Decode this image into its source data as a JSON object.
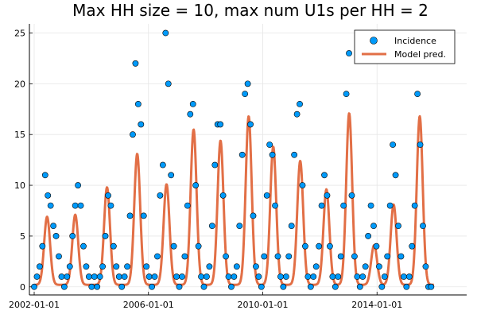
{
  "chart_data": {
    "type": "scatter",
    "title": "Max HH size = 10, max num U1s per HH = 2",
    "xlabel": "",
    "ylabel": "",
    "x_type": "date",
    "xlim": [
      "2001-11-01",
      "2017-02-20"
    ],
    "ylim": [
      -0.8,
      25.9
    ],
    "x_ticks": [
      "2002-01-01",
      "2006-01-01",
      "2010-01-01",
      "2014-01-01"
    ],
    "x_tick_labels": [
      "2002-01-01",
      "2006-01-01",
      "2010-01-01",
      "2014-01-01"
    ],
    "y_ticks": [
      0,
      5,
      10,
      15,
      20,
      25
    ],
    "y_tick_labels": [
      "0",
      "5",
      "10",
      "15",
      "20",
      "25"
    ],
    "grid": true,
    "legend_position": "top-right",
    "series": [
      {
        "name": "Incidence",
        "kind": "scatter",
        "color": "#009AFA",
        "points": [
          [
            "2002-01-01",
            0
          ],
          [
            "2002-02-05",
            1
          ],
          [
            "2002-03-12",
            2
          ],
          [
            "2002-04-16",
            4
          ],
          [
            "2002-05-21",
            11
          ],
          [
            "2002-06-25",
            9
          ],
          [
            "2002-07-30",
            8
          ],
          [
            "2002-09-03",
            6
          ],
          [
            "2002-10-08",
            5
          ],
          [
            "2002-11-12",
            3
          ],
          [
            "2002-12-17",
            1
          ],
          [
            "2003-01-21",
            0
          ],
          [
            "2003-02-25",
            1
          ],
          [
            "2003-04-01",
            2
          ],
          [
            "2003-05-06",
            5
          ],
          [
            "2003-06-10",
            8
          ],
          [
            "2003-07-15",
            10
          ],
          [
            "2003-08-19",
            8
          ],
          [
            "2003-09-23",
            4
          ],
          [
            "2003-10-28",
            2
          ],
          [
            "2003-12-02",
            1
          ],
          [
            "2004-01-06",
            0
          ],
          [
            "2004-02-10",
            1
          ],
          [
            "2004-03-16",
            0
          ],
          [
            "2004-04-20",
            1
          ],
          [
            "2004-05-25",
            2
          ],
          [
            "2004-06-29",
            5
          ],
          [
            "2004-08-03",
            9
          ],
          [
            "2004-09-07",
            8
          ],
          [
            "2004-10-12",
            4
          ],
          [
            "2004-11-16",
            2
          ],
          [
            "2004-12-21",
            1
          ],
          [
            "2005-01-25",
            0
          ],
          [
            "2005-03-01",
            1
          ],
          [
            "2005-04-05",
            2
          ],
          [
            "2005-05-10",
            7
          ],
          [
            "2005-06-14",
            15
          ],
          [
            "2005-07-19",
            22
          ],
          [
            "2005-08-23",
            18
          ],
          [
            "2005-09-27",
            16
          ],
          [
            "2005-11-01",
            7
          ],
          [
            "2005-12-06",
            2
          ],
          [
            "2006-01-10",
            1
          ],
          [
            "2006-02-14",
            0
          ],
          [
            "2006-03-21",
            1
          ],
          [
            "2006-04-25",
            3
          ],
          [
            "2006-05-30",
            9
          ],
          [
            "2006-07-04",
            12
          ],
          [
            "2006-08-08",
            25
          ],
          [
            "2006-09-12",
            20
          ],
          [
            "2006-10-17",
            11
          ],
          [
            "2006-11-21",
            4
          ],
          [
            "2006-12-26",
            1
          ],
          [
            "2007-01-30",
            0
          ],
          [
            "2007-03-06",
            1
          ],
          [
            "2007-04-10",
            3
          ],
          [
            "2007-05-15",
            8
          ],
          [
            "2007-06-19",
            17
          ],
          [
            "2007-07-24",
            18
          ],
          [
            "2007-08-28",
            10
          ],
          [
            "2007-10-02",
            4
          ],
          [
            "2007-11-06",
            1
          ],
          [
            "2007-12-11",
            0
          ],
          [
            "2008-01-15",
            1
          ],
          [
            "2008-02-19",
            2
          ],
          [
            "2008-03-25",
            6
          ],
          [
            "2008-04-29",
            12
          ],
          [
            "2008-06-03",
            16
          ],
          [
            "2008-07-08",
            16
          ],
          [
            "2008-08-12",
            9
          ],
          [
            "2008-09-16",
            3
          ],
          [
            "2008-10-21",
            1
          ],
          [
            "2008-11-25",
            0
          ],
          [
            "2008-12-30",
            1
          ],
          [
            "2009-02-03",
            2
          ],
          [
            "2009-03-10",
            6
          ],
          [
            "2009-04-14",
            13
          ],
          [
            "2009-05-19",
            19
          ],
          [
            "2009-06-23",
            20
          ],
          [
            "2009-07-28",
            16
          ],
          [
            "2009-09-01",
            7
          ],
          [
            "2009-10-06",
            2
          ],
          [
            "2009-11-10",
            1
          ],
          [
            "2009-12-15",
            0
          ],
          [
            "2010-01-19",
            3
          ],
          [
            "2010-02-23",
            9
          ],
          [
            "2010-03-30",
            14
          ],
          [
            "2010-05-04",
            13
          ],
          [
            "2010-06-08",
            8
          ],
          [
            "2010-07-13",
            3
          ],
          [
            "2010-08-17",
            1
          ],
          [
            "2010-09-21",
            0
          ],
          [
            "2010-10-26",
            1
          ],
          [
            "2010-11-30",
            3
          ],
          [
            "2011-01-04",
            6
          ],
          [
            "2011-02-08",
            13
          ],
          [
            "2011-03-15",
            17
          ],
          [
            "2011-04-19",
            18
          ],
          [
            "2011-05-24",
            10
          ],
          [
            "2011-06-28",
            4
          ],
          [
            "2011-08-02",
            1
          ],
          [
            "2011-09-06",
            0
          ],
          [
            "2011-10-11",
            1
          ],
          [
            "2011-11-15",
            2
          ],
          [
            "2011-12-20",
            4
          ],
          [
            "2012-01-24",
            8
          ],
          [
            "2012-02-28",
            11
          ],
          [
            "2012-04-03",
            9
          ],
          [
            "2012-05-08",
            4
          ],
          [
            "2012-06-12",
            1
          ],
          [
            "2012-07-17",
            0
          ],
          [
            "2012-08-21",
            1
          ],
          [
            "2012-09-25",
            3
          ],
          [
            "2012-10-30",
            8
          ],
          [
            "2012-12-04",
            19
          ],
          [
            "2013-01-08",
            23
          ],
          [
            "2013-02-12",
            9
          ],
          [
            "2013-03-19",
            3
          ],
          [
            "2013-04-23",
            1
          ],
          [
            "2013-05-28",
            0
          ],
          [
            "2013-07-02",
            1
          ],
          [
            "2013-08-06",
            2
          ],
          [
            "2013-09-10",
            5
          ],
          [
            "2013-10-15",
            8
          ],
          [
            "2013-11-19",
            6
          ],
          [
            "2013-12-24",
            4
          ],
          [
            "2014-01-28",
            2
          ],
          [
            "2014-03-04",
            0
          ],
          [
            "2014-04-08",
            1
          ],
          [
            "2014-05-13",
            3
          ],
          [
            "2014-06-17",
            8
          ],
          [
            "2014-07-22",
            14
          ],
          [
            "2014-08-26",
            11
          ],
          [
            "2014-09-30",
            6
          ],
          [
            "2014-11-04",
            3
          ],
          [
            "2014-12-09",
            1
          ],
          [
            "2015-01-13",
            0
          ],
          [
            "2015-02-17",
            1
          ],
          [
            "2015-03-24",
            4
          ],
          [
            "2015-04-28",
            8
          ],
          [
            "2015-06-02",
            19
          ],
          [
            "2015-07-07",
            14
          ],
          [
            "2015-08-11",
            6
          ],
          [
            "2015-09-15",
            2
          ],
          [
            "2015-10-20",
            0
          ],
          [
            "2015-11-24",
            0
          ]
        ]
      },
      {
        "name": "Model pred.",
        "kind": "line",
        "color": "#E26F46",
        "peaks": [
          [
            "2002-06-15",
            6.9
          ],
          [
            "2003-06-10",
            7.1
          ],
          [
            "2004-07-20",
            9.8
          ],
          [
            "2005-08-10",
            13.1
          ],
          [
            "2006-08-20",
            10.1
          ],
          [
            "2007-08-01",
            15.5
          ],
          [
            "2008-07-10",
            14.4
          ],
          [
            "2009-07-05",
            16.8
          ],
          [
            "2010-05-15",
            13.8
          ],
          [
            "2011-04-25",
            12.4
          ],
          [
            "2012-03-25",
            9.6
          ],
          [
            "2013-01-10",
            17.1
          ],
          [
            "2013-11-25",
            4.1
          ],
          [
            "2014-08-01",
            8.1
          ],
          [
            "2015-07-01",
            16.8
          ]
        ],
        "trough": 0.2,
        "start": "2002-01-01",
        "end": "2016-01-01"
      }
    ]
  }
}
